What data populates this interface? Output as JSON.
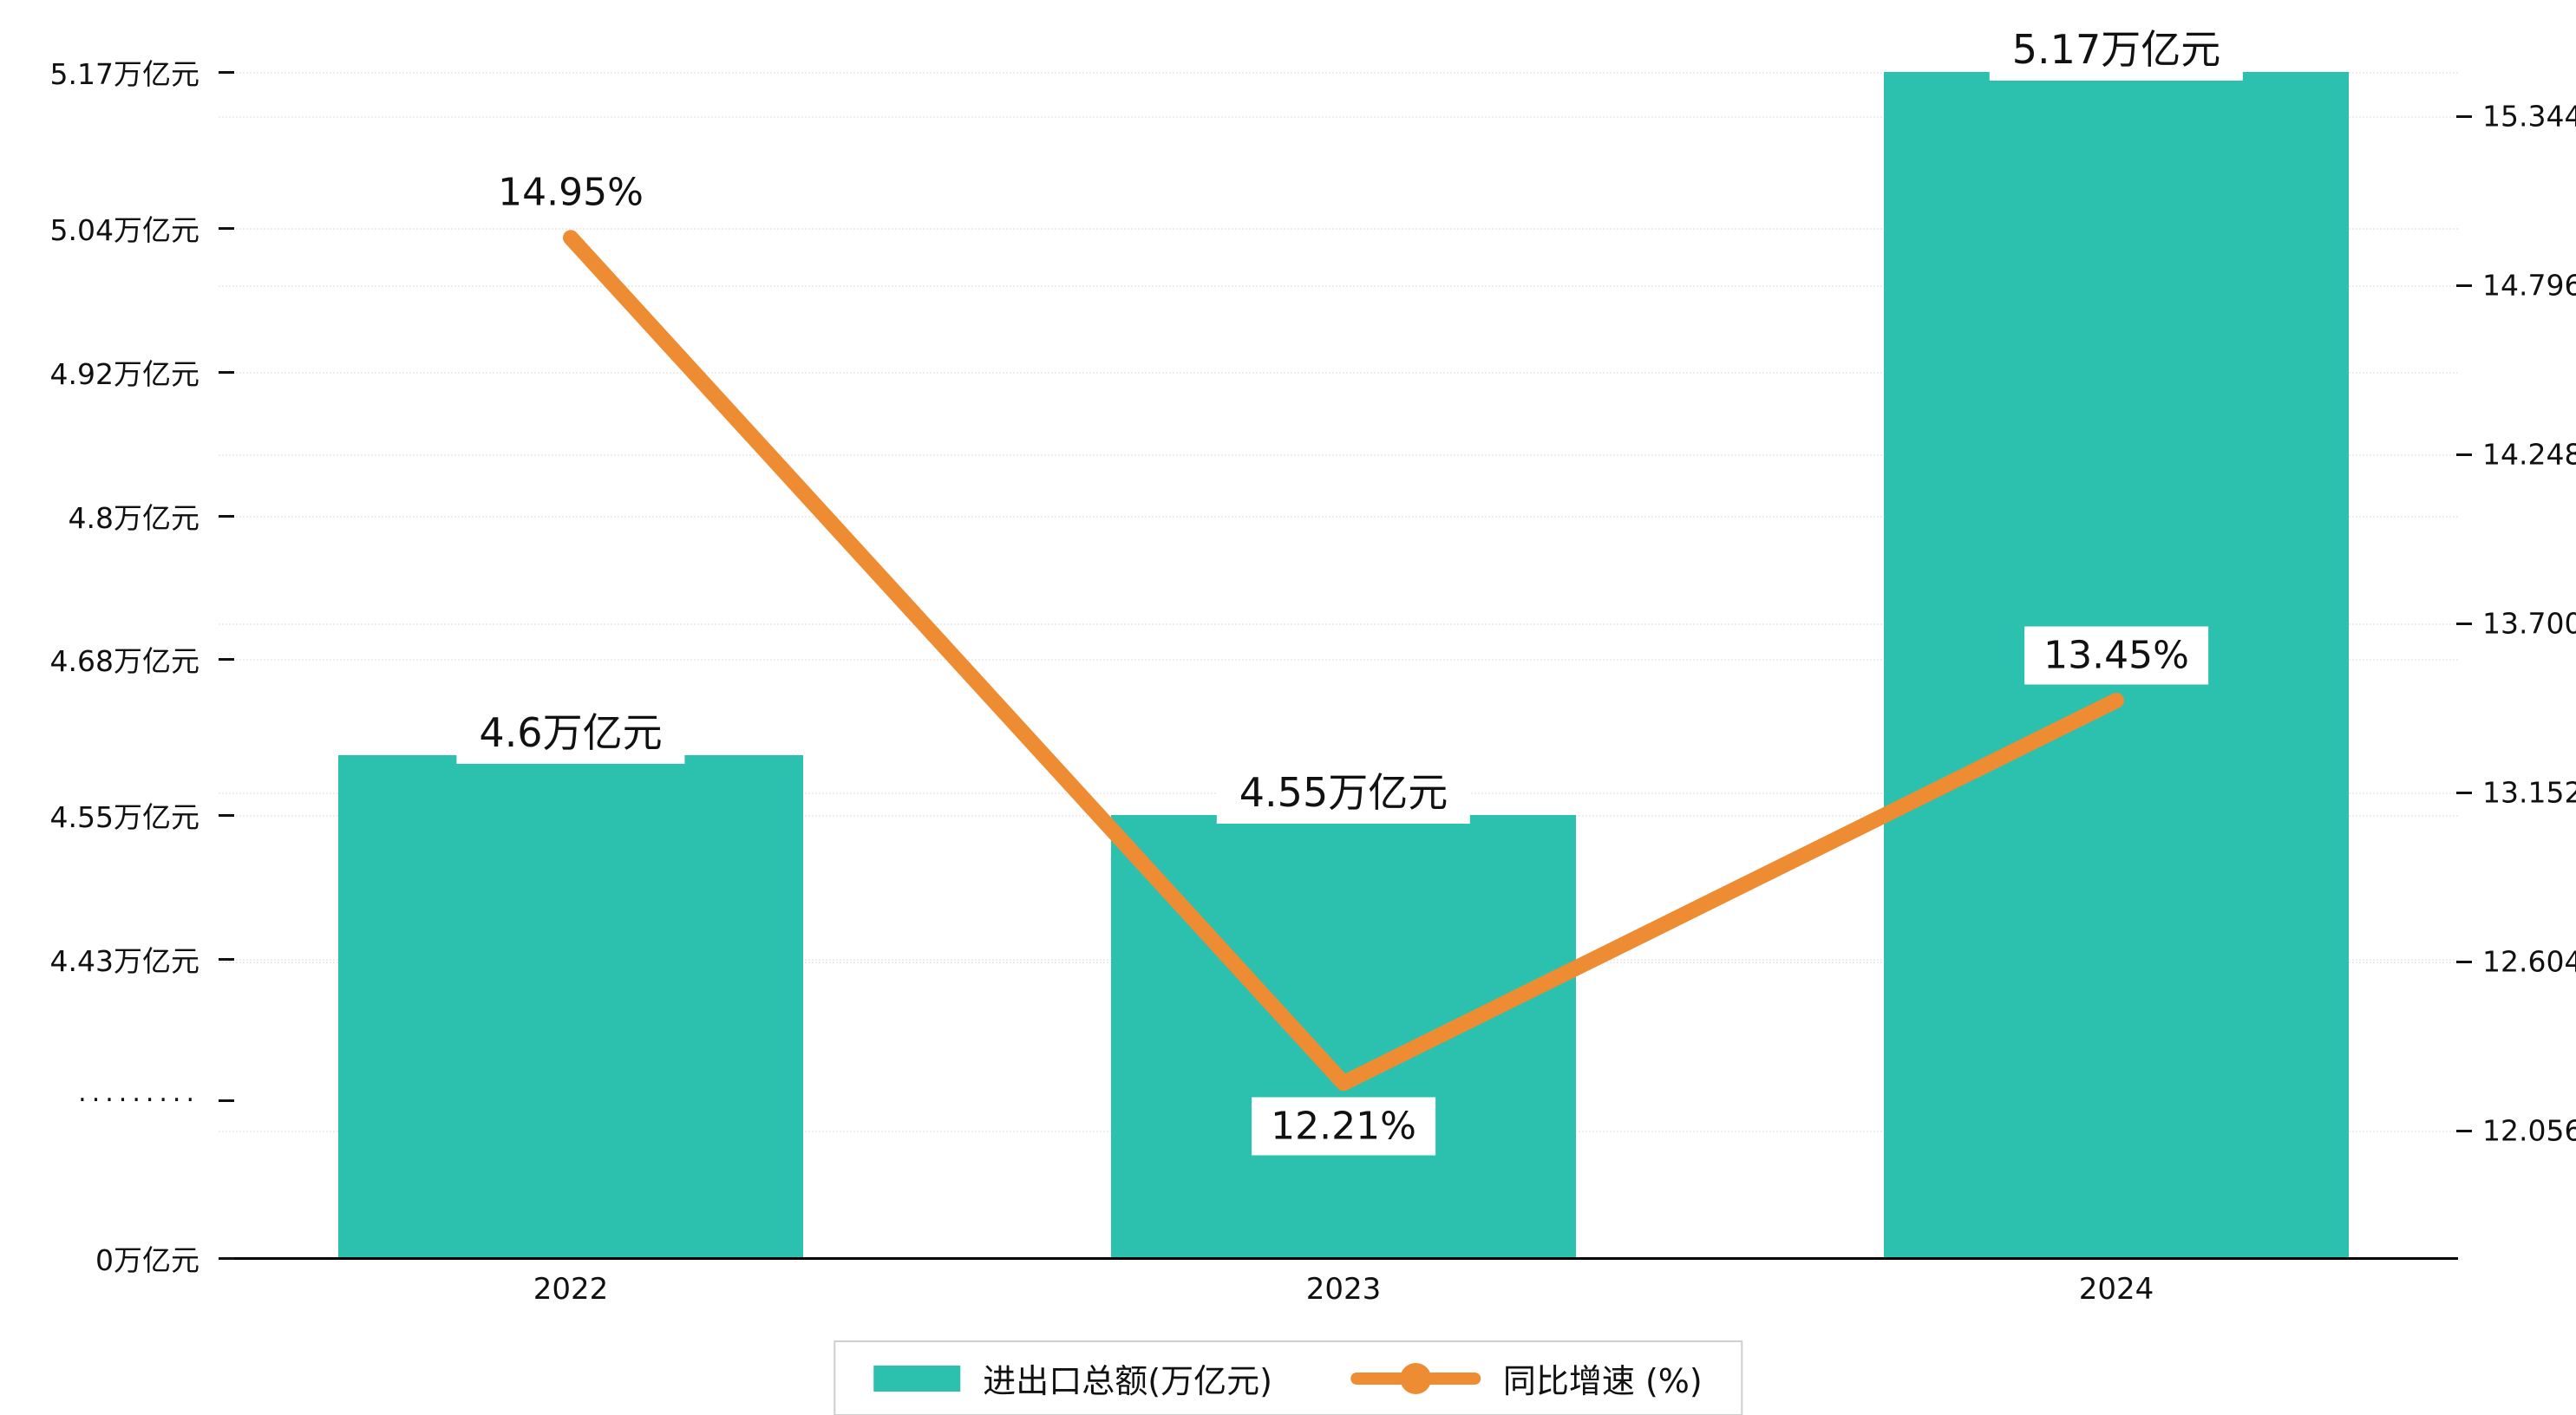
{
  "chart_data": {
    "type": "bar+line",
    "title": "",
    "categories": [
      "2022",
      "2023",
      "2024"
    ],
    "series": [
      {
        "name": "进出口总额(万亿元)",
        "type": "bar",
        "axis": "left",
        "values": [
          4.6,
          4.55,
          5.17
        ],
        "labels": [
          "4.6万亿元",
          "4.55万亿元",
          "5.17万亿元"
        ]
      },
      {
        "name": "同比增速 (%)",
        "type": "line",
        "axis": "right",
        "values": [
          14.95,
          12.21,
          13.45
        ],
        "labels": [
          "14.95%",
          "12.21%",
          "13.45%"
        ]
      }
    ],
    "left_axis": {
      "unit": "万亿元",
      "has_break": true,
      "ticks": [
        {
          "label": "5.17万亿元",
          "value": 5.17
        },
        {
          "label": "5.04万亿元",
          "value": 5.04
        },
        {
          "label": "4.92万亿元",
          "value": 4.92
        },
        {
          "label": "4.8万亿元",
          "value": 4.8
        },
        {
          "label": "4.68万亿元",
          "value": 4.68
        },
        {
          "label": "4.55万亿元",
          "value": 4.55
        },
        {
          "label": "4.43万亿元",
          "value": 4.43
        },
        {
          "label": "·········",
          "value": null
        },
        {
          "label": "0万亿元",
          "value": 0
        }
      ]
    },
    "right_axis": {
      "ticks": [
        "15.344",
        "14.796",
        "14.248",
        "13.700",
        "13.152",
        "12.604",
        "12.056"
      ]
    },
    "legend_position": "bottom",
    "grid": "dotted",
    "colors": {
      "bar": "#2CC0AF",
      "line": "#ED8C32",
      "text": "#111111",
      "legend_border": "#cfcfcf"
    }
  }
}
